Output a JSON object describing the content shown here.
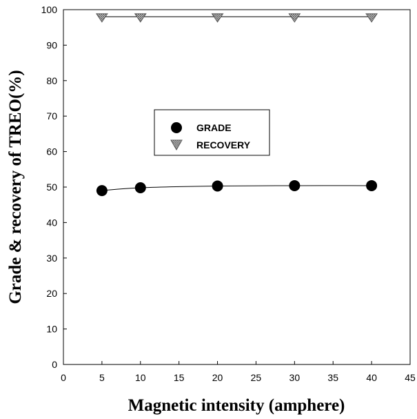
{
  "chart_data": {
    "type": "scatter",
    "xlabel": "Magnetic intensity (amphere)",
    "ylabel": "Grade & recovery of TREO(%)",
    "xlim": [
      0,
      45
    ],
    "ylim": [
      0,
      100
    ],
    "xticks": [
      0,
      5,
      10,
      15,
      20,
      25,
      30,
      35,
      40,
      45
    ],
    "yticks": [
      0,
      10,
      20,
      30,
      40,
      50,
      60,
      70,
      80,
      90,
      100
    ],
    "grid": false,
    "legend_position": "center-left",
    "series": [
      {
        "name": "GRADE",
        "marker": "filled-circle",
        "color": "#000000",
        "x": [
          5,
          10,
          20,
          30,
          40
        ],
        "y": [
          49.0,
          49.8,
          50.3,
          50.4,
          50.4
        ]
      },
      {
        "name": "RECOVERY",
        "marker": "hatched-down-triangle",
        "color": "#888888",
        "x": [
          5,
          10,
          20,
          30,
          40
        ],
        "y": [
          98.0,
          98.0,
          98.0,
          98.0,
          98.0
        ]
      }
    ]
  }
}
